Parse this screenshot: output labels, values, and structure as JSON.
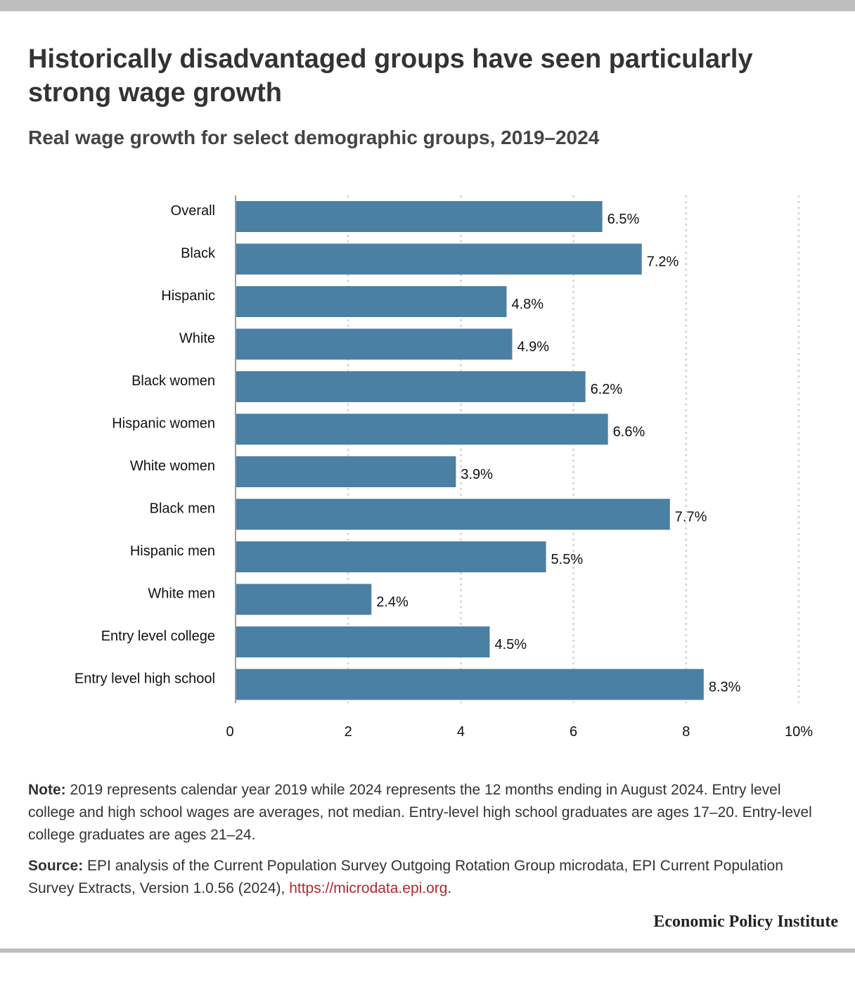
{
  "header": {
    "title": "Historically disadvantaged groups have seen particularly strong wage growth",
    "subtitle": "Real wage growth for select demographic groups, 2019–2024"
  },
  "chart_data": {
    "type": "bar",
    "orientation": "horizontal",
    "categories": [
      "Overall",
      "Black",
      "Hispanic",
      "White",
      "Black women",
      "Hispanic women",
      "White women",
      "Black men",
      "Hispanic men",
      "White men",
      "Entry level college",
      "Entry level high school"
    ],
    "values": [
      6.5,
      7.2,
      4.8,
      4.9,
      6.2,
      6.6,
      3.9,
      7.7,
      5.5,
      2.4,
      4.5,
      8.3
    ],
    "value_labels": [
      "6.5%",
      "7.2%",
      "4.8%",
      "4.9%",
      "6.2%",
      "6.6%",
      "3.9%",
      "7.7%",
      "5.5%",
      "2.4%",
      "4.5%",
      "8.3%"
    ],
    "x_ticks": [
      "0",
      "2",
      "4",
      "6",
      "8",
      "10%"
    ],
    "xlim": [
      0,
      10
    ],
    "grid": true,
    "bar_color": "#4a80a3",
    "grid_color": "#d9d9d9"
  },
  "footer": {
    "note_lead": "Note:",
    "note_text": "2019 represents calendar year 2019 while 2024 represents the 12 months ending in August 2024. Entry level college and high school wages are averages, not median. Entry-level high school graduates are ages 17–20. Entry-level college graduates are ages 21–24.",
    "source_lead": "Source:",
    "source_text": "EPI analysis of the Current Population Survey Outgoing Rotation Group microdata, EPI Current Population Survey Extracts, Version 1.0.56 (2024),",
    "source_link": "https://microdata.epi.org",
    "source_end": ".",
    "brand": "Economic Policy Institute"
  }
}
